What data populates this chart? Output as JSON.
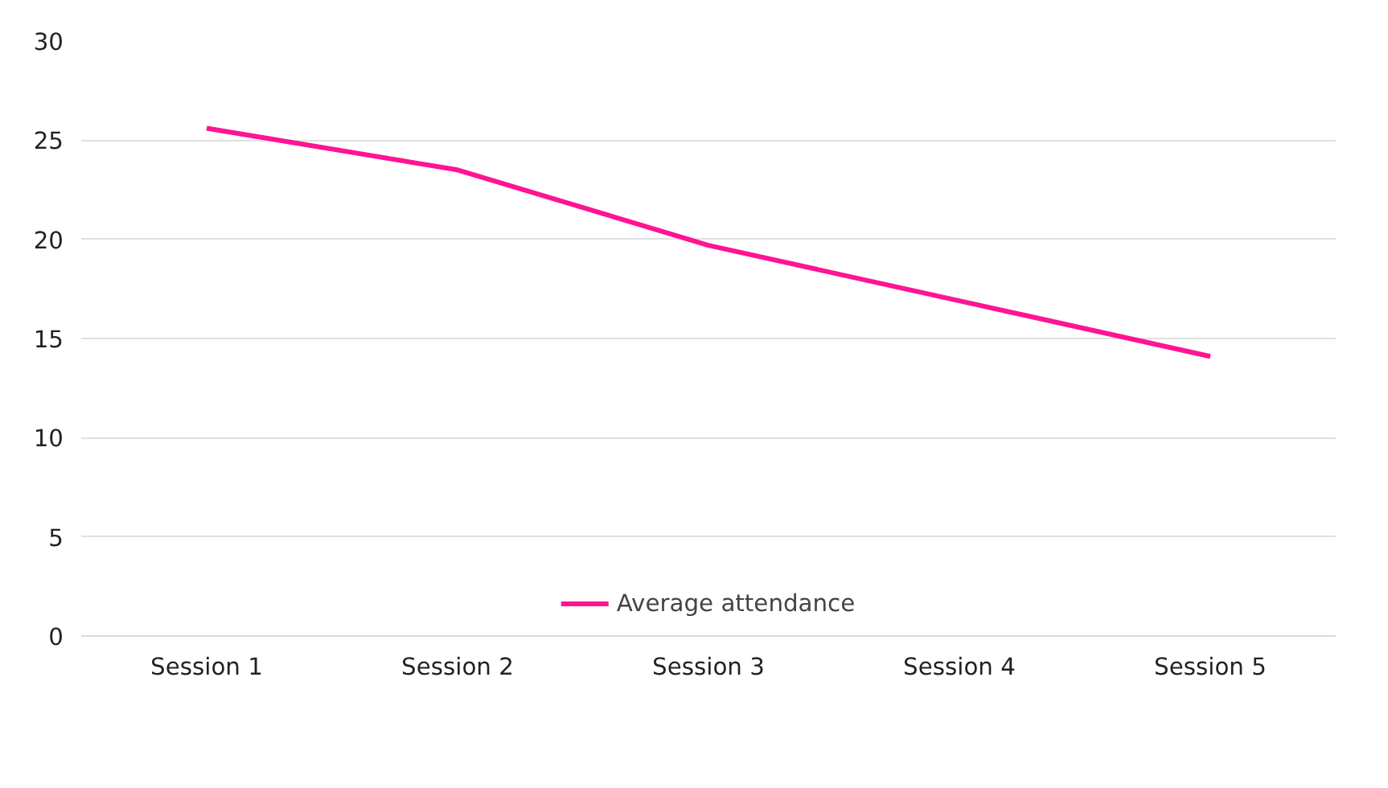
{
  "chart_data": {
    "type": "line",
    "categories": [
      "Session 1",
      "Session 2",
      "Session 3",
      "Session 4",
      "Session 5"
    ],
    "series": [
      {
        "name": "Average attendance",
        "color": "#ff1493",
        "values": [
          25.6,
          23.5,
          19.7,
          16.9,
          14.1
        ]
      }
    ],
    "ylim": [
      0,
      30
    ],
    "yticks": [
      0,
      5,
      10,
      15,
      20,
      25,
      30
    ],
    "grid": "y",
    "legend": "bottom",
    "line_style": "solid"
  }
}
